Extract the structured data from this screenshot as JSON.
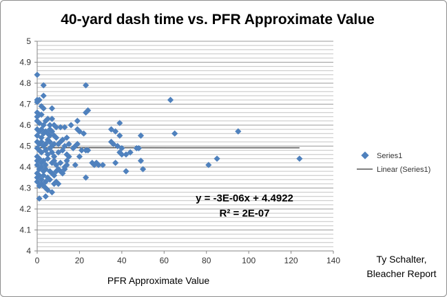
{
  "chart_data": {
    "type": "scatter",
    "title": "40-yard dash time vs. PFR Approximate Value",
    "xlabel": "PFR Approximate Value",
    "ylabel": "",
    "xlim": [
      0,
      140
    ],
    "ylim": [
      4,
      5
    ],
    "x_ticks": [
      "0",
      "20",
      "40",
      "60",
      "80",
      "100",
      "120",
      "140"
    ],
    "y_ticks": [
      "4",
      "4.1",
      "4.2",
      "4.3",
      "4.4",
      "4.5",
      "4.6",
      "4.7",
      "4.8",
      "4.9",
      "5"
    ],
    "grid": {
      "horizontal": true,
      "minor_step": 0.02
    },
    "legend_position": "right",
    "marker_color": "#4f81bd",
    "trendline_color": "#000000",
    "series": [
      {
        "name": "Series1",
        "points": [
          [
            0,
            4.84
          ],
          [
            0,
            4.72
          ],
          [
            1,
            4.72
          ],
          [
            0,
            4.71
          ],
          [
            3,
            4.79
          ],
          [
            3,
            4.74
          ],
          [
            23,
            4.79
          ],
          [
            63,
            4.72
          ],
          [
            2,
            4.69
          ],
          [
            3,
            4.68
          ],
          [
            7,
            4.68
          ],
          [
            0,
            4.66
          ],
          [
            1,
            4.65
          ],
          [
            2,
            4.65
          ],
          [
            5,
            4.63
          ],
          [
            7,
            4.63
          ],
          [
            0,
            4.64
          ],
          [
            0,
            4.62
          ],
          [
            1,
            4.61
          ],
          [
            3,
            4.6
          ],
          [
            4,
            4.62
          ],
          [
            6,
            4.6
          ],
          [
            8,
            4.6
          ],
          [
            9,
            4.59
          ],
          [
            11,
            4.59
          ],
          [
            13,
            4.59
          ],
          [
            16,
            4.6
          ],
          [
            19,
            4.62
          ],
          [
            23,
            4.66
          ],
          [
            24,
            4.67
          ],
          [
            39,
            4.61
          ],
          [
            0,
            4.58
          ],
          [
            1,
            4.57
          ],
          [
            2,
            4.58
          ],
          [
            4,
            4.57
          ],
          [
            5,
            4.56
          ],
          [
            6,
            4.58
          ],
          [
            7,
            4.57
          ],
          [
            8,
            4.55
          ],
          [
            0,
            4.55
          ],
          [
            2,
            4.54
          ],
          [
            3,
            4.56
          ],
          [
            5,
            4.53
          ],
          [
            6,
            4.55
          ],
          [
            9,
            4.54
          ],
          [
            12,
            4.53
          ],
          [
            14,
            4.54
          ],
          [
            19,
            4.58
          ],
          [
            20,
            4.57
          ],
          [
            22,
            4.56
          ],
          [
            35,
            4.58
          ],
          [
            37,
            4.57
          ],
          [
            39,
            4.55
          ],
          [
            49,
            4.55
          ],
          [
            65,
            4.56
          ],
          [
            95,
            4.57
          ],
          [
            0,
            4.52
          ],
          [
            1,
            4.51
          ],
          [
            2,
            4.52
          ],
          [
            3,
            4.5
          ],
          [
            4,
            4.51
          ],
          [
            6,
            4.52
          ],
          [
            7,
            4.5
          ],
          [
            8,
            4.51
          ],
          [
            10,
            4.51
          ],
          [
            11,
            4.52
          ],
          [
            13,
            4.5
          ],
          [
            15,
            4.51
          ],
          [
            17,
            4.49
          ],
          [
            18,
            4.5
          ],
          [
            19,
            4.51
          ],
          [
            21,
            4.48
          ],
          [
            35,
            4.52
          ],
          [
            36,
            4.51
          ],
          [
            38,
            4.5
          ],
          [
            40,
            4.49
          ],
          [
            47,
            4.49
          ],
          [
            48,
            4.49
          ],
          [
            0,
            4.49
          ],
          [
            1,
            4.48
          ],
          [
            2,
            4.47
          ],
          [
            4,
            4.48
          ],
          [
            5,
            4.46
          ],
          [
            6,
            4.49
          ],
          [
            7,
            4.47
          ],
          [
            8,
            4.45
          ],
          [
            10,
            4.47
          ],
          [
            12,
            4.48
          ],
          [
            14,
            4.46
          ],
          [
            15,
            4.45
          ],
          [
            20,
            4.45
          ],
          [
            23,
            4.48
          ],
          [
            24,
            4.48
          ],
          [
            39,
            4.47
          ],
          [
            40,
            4.46
          ],
          [
            42,
            4.46
          ],
          [
            44,
            4.47
          ],
          [
            0,
            4.45
          ],
          [
            0,
            4.43
          ],
          [
            1,
            4.44
          ],
          [
            2,
            4.42
          ],
          [
            3,
            4.43
          ],
          [
            4,
            4.41
          ],
          [
            5,
            4.44
          ],
          [
            7,
            4.42
          ],
          [
            8,
            4.43
          ],
          [
            9,
            4.41
          ],
          [
            11,
            4.42
          ],
          [
            13,
            4.4
          ],
          [
            14,
            4.43
          ],
          [
            18,
            4.41
          ],
          [
            0,
            4.41
          ],
          [
            1,
            4.39
          ],
          [
            2,
            4.4
          ],
          [
            3,
            4.38
          ],
          [
            4,
            4.39
          ],
          [
            6,
            4.38
          ],
          [
            7,
            4.37
          ],
          [
            9,
            4.38
          ],
          [
            10,
            4.39
          ],
          [
            11,
            4.38
          ],
          [
            12,
            4.37
          ],
          [
            13,
            4.39
          ],
          [
            14,
            4.41
          ],
          [
            26,
            4.42
          ],
          [
            27,
            4.41
          ],
          [
            28,
            4.42
          ],
          [
            29,
            4.41
          ],
          [
            31,
            4.41
          ],
          [
            37,
            4.42
          ],
          [
            42,
            4.38
          ],
          [
            49,
            4.43
          ],
          [
            50,
            4.39
          ],
          [
            81,
            4.41
          ],
          [
            85,
            4.44
          ],
          [
            124,
            4.44
          ],
          [
            0,
            4.37
          ],
          [
            0,
            4.35
          ],
          [
            1,
            4.36
          ],
          [
            2,
            4.34
          ],
          [
            3,
            4.36
          ],
          [
            4,
            4.33
          ],
          [
            5,
            4.35
          ],
          [
            6,
            4.34
          ],
          [
            8,
            4.36
          ],
          [
            0,
            4.33
          ],
          [
            1,
            4.31
          ],
          [
            2,
            4.32
          ],
          [
            3,
            4.31
          ],
          [
            4,
            4.3
          ],
          [
            5,
            4.29
          ],
          [
            7,
            4.28
          ],
          [
            8,
            4.32
          ],
          [
            9,
            4.33
          ],
          [
            10,
            4.32
          ],
          [
            23,
            4.35
          ],
          [
            4,
            4.3
          ],
          [
            1,
            4.25
          ],
          [
            4,
            4.26
          ]
        ]
      },
      {
        "name": "Linear (Series1)",
        "slope": -3e-06,
        "intercept": 4.4922
      }
    ],
    "annotations": [
      "y = -3E-06x + 4.4922",
      "R² = 2E-07"
    ]
  },
  "footer": {
    "credit_line1": "Ty Schalter,",
    "credit_line2": "Bleacher Report"
  }
}
